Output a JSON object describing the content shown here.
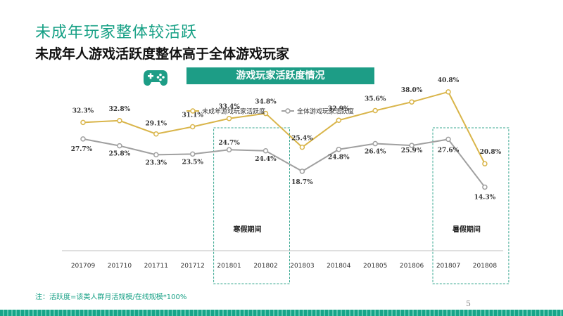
{
  "slide": {
    "title": "未成年玩家整体较活跃",
    "subtitle": "未成年人游戏活跃度整体高于全体游戏玩家",
    "banner": "游戏玩家活跃度情况",
    "note": "注：活跃度=该类人群月活规模/在线规模*100%",
    "page_number": "5",
    "icon": "gamepad-icon",
    "accent_color": "#1d9d86"
  },
  "chart_data": {
    "type": "line",
    "categories": [
      "201709",
      "201710",
      "201711",
      "201712",
      "201801",
      "201802",
      "201803",
      "201804",
      "201805",
      "201806",
      "201807",
      "201808"
    ],
    "series": [
      {
        "name": "未成年游戏玩家活跃度",
        "color": "#d9b54a",
        "values": [
          32.3,
          32.8,
          29.1,
          31.1,
          33.4,
          34.8,
          25.4,
          32.9,
          35.6,
          38.0,
          40.8,
          20.8
        ],
        "labels": [
          "32.3%",
          "32.8%",
          "29.1%",
          "31.1%",
          "33.4%",
          "34.8%",
          "25.4%",
          "32.9%",
          "35.6%",
          "38.0%",
          "40.8%",
          "20.8%"
        ]
      },
      {
        "name": "全体游戏玩家活跃度",
        "color": "#a0a0a0",
        "values": [
          27.7,
          25.8,
          23.3,
          23.5,
          24.7,
          24.4,
          18.7,
          24.8,
          26.4,
          25.9,
          27.6,
          14.3
        ],
        "labels": [
          "27.7%",
          "25.8%",
          "23.3%",
          "23.5%",
          "24.7%",
          "24.4%",
          "18.7%",
          "24.8%",
          "26.4%",
          "25.9%",
          "27.6%",
          "14.3%"
        ]
      }
    ],
    "annotations": [
      {
        "label": "寒假期间",
        "from": "201801",
        "to": "201802"
      },
      {
        "label": "暑假期间",
        "from": "201807",
        "to": "201808"
      }
    ],
    "legend": "top",
    "grid": false
  }
}
